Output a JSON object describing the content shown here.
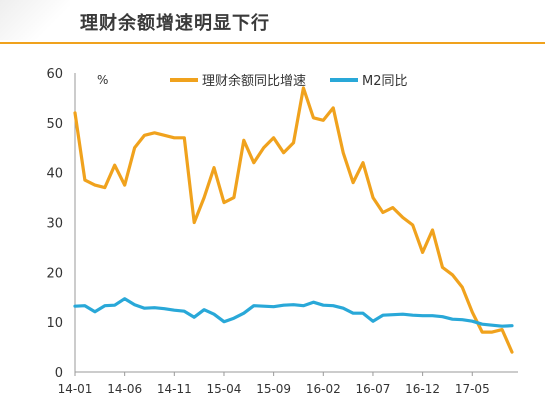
{
  "title": "理财余额增速明显下行",
  "chart_data": {
    "type": "line",
    "unit_label": "%",
    "ylim": [
      0,
      60
    ],
    "yticks": [
      0,
      10,
      20,
      30,
      40,
      50,
      60
    ],
    "x_tick_labels": [
      "14-01",
      "14-06",
      "14-11",
      "15-04",
      "15-09",
      "16-02",
      "16-07",
      "16-12",
      "17-05"
    ],
    "grid": false,
    "legend_position": "top",
    "series": [
      {
        "name": "理财余额同比增速",
        "color": "#f0a21d",
        "values": [
          52,
          38.5,
          37.5,
          37,
          41.5,
          37.5,
          45,
          47.5,
          48,
          47.5,
          47,
          47,
          30,
          35,
          41,
          34,
          35,
          46.5,
          42,
          45,
          47,
          44,
          46,
          57,
          51,
          50.5,
          53,
          44,
          38,
          42,
          35,
          32,
          33,
          31,
          29.5,
          24,
          28.5,
          21,
          19.5,
          17,
          12,
          8,
          8,
          8.5,
          4
        ]
      },
      {
        "name": "M2同比",
        "color": "#29a8d8",
        "values": [
          13.2,
          13.3,
          12.1,
          13.3,
          13.4,
          14.7,
          13.5,
          12.8,
          12.9,
          12.7,
          12.4,
          12.2,
          11,
          12.5,
          11.6,
          10.1,
          10.8,
          11.8,
          13.3,
          13.2,
          13.1,
          13.4,
          13.5,
          13.3,
          14,
          13.4,
          13.3,
          12.8,
          11.8,
          11.8,
          10.2,
          11.4,
          11.5,
          11.6,
          11.4,
          11.3,
          11.3,
          11.1,
          10.6,
          10.5,
          10.2,
          9.6,
          9.4,
          9.2,
          9.3
        ]
      }
    ]
  }
}
